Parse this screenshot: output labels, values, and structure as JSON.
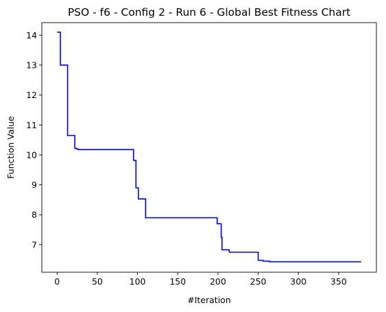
{
  "chart_data": {
    "type": "line",
    "title": "PSO - f6 - Config 2 - Run 6 - Global Best Fitness Chart",
    "xlabel": "#Iteration",
    "ylabel": "Function Value",
    "xlim": [
      -19,
      397
    ],
    "ylim": [
      6.08,
      14.42
    ],
    "x_ticks": [
      0,
      50,
      100,
      150,
      200,
      250,
      300,
      350
    ],
    "y_ticks": [
      7,
      8,
      9,
      10,
      11,
      12,
      13,
      14
    ],
    "grid": false,
    "legend": "none",
    "series": [
      {
        "color": "#0000ff",
        "step": "post",
        "x": [
          0,
          4,
          13,
          22,
          24,
          26,
          95,
          98,
          101,
          105,
          110,
          113,
          199,
          204,
          205,
          206,
          214,
          250,
          256,
          258,
          264,
          378
        ],
        "y": [
          14.1,
          13.0,
          10.65,
          10.22,
          10.2,
          10.18,
          9.82,
          8.9,
          8.53,
          8.53,
          7.9,
          7.9,
          7.7,
          7.25,
          6.83,
          6.83,
          6.75,
          6.48,
          6.45,
          6.45,
          6.43,
          6.43
        ]
      }
    ]
  }
}
